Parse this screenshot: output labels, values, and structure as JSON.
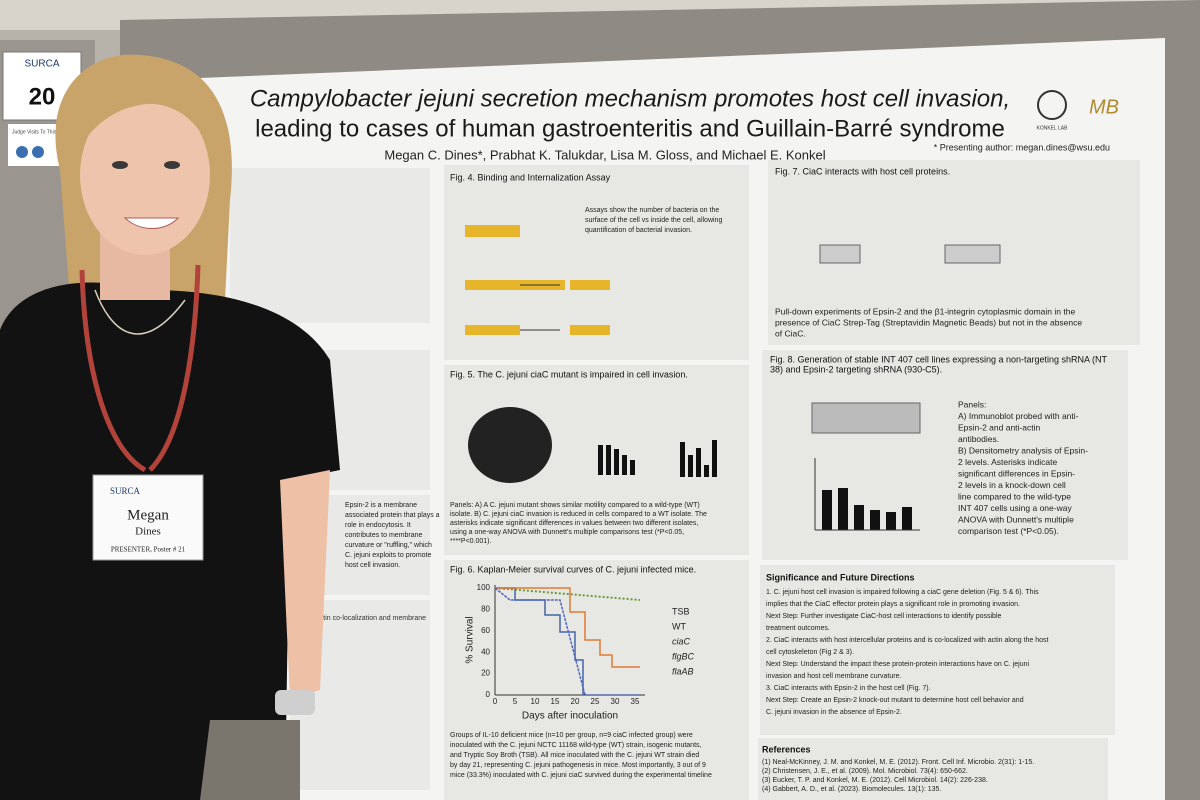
{
  "sign": {
    "logo": "SURCA",
    "number": "20",
    "note": "Judge Visits To This Poster"
  },
  "poster": {
    "title_line1": "Campylobacter jejuni secretion mechanism promotes host cell invasion,",
    "title_line2": "leading to cases of human gastroenteritis and Guillain-Barré syndrome",
    "authors": "Megan C. Dines*, Prabhat K. Talukdar, Lisa M. Gloss, and Michael E. Konkel",
    "presenting": "* Presenting author: megan.dines@wsu.edu",
    "lab": "KONKEL LAB",
    "logo": "MB",
    "fig4": {
      "heading": "Fig. 4. Binding and Internalization Assay",
      "text": [
        "Assays show the number of bacteria on the",
        "surface of the cell vs inside the cell, allowing",
        "quantification of bacterial invasion."
      ]
    },
    "fig5": {
      "heading": "Fig. 5. The C. jejuni ciaC mutant is impaired in cell invasion.",
      "caption": [
        "Panels: A) A C. jejuni mutant shows similar motility compared to a wild-type (WT)",
        "isolate. B) C. jejuni ciaC invasion is reduced in cells compared to a WT isolate. The",
        "asterisks indicate significant differences in values between two different isolates,",
        "using a one-way ANOVA with Dunnett's multiple comparisons test (*P<0.05,",
        "****P<0.001)."
      ]
    },
    "fig6": {
      "heading": "Fig. 6. Kaplan-Meier survival curves of C. jejuni infected mice.",
      "y_label": "% Survival",
      "x_label": "Days after inoculation",
      "x_ticks": [
        "0",
        "5",
        "10",
        "15",
        "20",
        "25",
        "30",
        "35"
      ],
      "y_ticks": [
        "0",
        "20",
        "40",
        "60",
        "80",
        "100"
      ],
      "legend": [
        "TSB",
        "WT",
        "ciaC",
        "flgBC",
        "flaAB"
      ],
      "caption": [
        "Groups of IL-10 deficient mice (n=10 per group, n=9 ciaC infected group) were",
        "inoculated with the C. jejuni NCTC 11168 wild-type (WT) strain, isogenic mutants,",
        "and Tryptic Soy Broth (TSB). All mice inoculated with the C. jejuni WT strain died",
        "by day 21, representing C. jejuni pathogenesis in mice. Most importantly, 3 out of 9",
        "mice (33.3%) inoculated with C. jejuni ciaC survived during the experimental timeline"
      ]
    },
    "fig7": {
      "heading": "Fig. 7. CiaC interacts with host cell proteins.",
      "caption": [
        "Pull-down experiments of Epsin-2 and the β1-integrin cytoplasmic domain in the",
        "presence of CiaC Strep-Tag (Streptavidin Magnetic Beads) but not in the absence",
        "of CiaC."
      ]
    },
    "fig8": {
      "heading": [
        "Fig. 8. Generation of stable INT 407 cell lines expressing a non-targeting shRNA (NT",
        "38) and Epsin-2 targeting shRNA (930-C5)."
      ],
      "panels": [
        "Panels:",
        "A)  Immunoblot probed with anti-",
        "     Epsin-2 and anti-actin",
        "     antibodies.",
        "B)  Densitometry analysis of Epsin-",
        "     2 levels. Asterisks indicate",
        "     significant differences in Epsin-",
        "     2 levels in a knock-down cell",
        "     line compared to the wild-type",
        "     INT 407 cells using a one-way",
        "     ANOVA with Dunnett's multiple",
        "     comparison test (*P<0.05)."
      ]
    },
    "significance": {
      "heading": "Significance and Future Directions",
      "lines": [
        "1. C. jejuni host cell invasion is impaired following a ciaC gene deletion (Fig. 5 & 6). This",
        "implies that the CiaC effector protein plays a significant role in promoting invasion.",
        "Next Step: Further investigate CiaC-host cell interactions to identify possible",
        "treatment outcomes.",
        "2. CiaC interacts with host intercellular proteins and is co-localized with actin along the host",
        "cell cytoskeleton (Fig 2 & 3).",
        "Next Step: Understand the impact these protein-protein interactions have on C. jejuni",
        "invasion and host cell membrane curvature.",
        "3. CiaC interacts with Epsin-2 in the host cell (Fig. 7).",
        "Next Step: Create an Epsin-2 knock-out mutant to determine host cell behavior and",
        "C. jejuni invasion in the absence of Epsin-2."
      ]
    },
    "references": {
      "heading": "References",
      "lines": [
        "(1) Neal-McKinney, J. M. and Konkel, M. E. (2012). Front. Cell Inf. Microbio. 2(31): 1-15.",
        "(2) Christensen, J. E., et al. (2009). Mol. Microbiol. 73(4): 650-662.",
        "(3) Eucker, T. P. and Konkel, M. E. (2012). Cell Microbiol. 14(2): 226-238.",
        "(4) Gabbert, A. D., et al. (2023). Biomolecules. 13(1): 135."
      ]
    },
    "left": {
      "epsin": [
        "Epsin-2 is a membrane",
        "associated protein that plays a",
        "role in endocytosis. It",
        "contributes to membrane",
        "curvature or \"ruffling,\" which",
        "C. jejuni exploits to promote",
        "host cell invasion."
      ],
      "coloc": "CiaC-actin co-localization and membrane"
    }
  },
  "badge": {
    "logo": "SURCA",
    "first": "Megan",
    "last": "Dines",
    "role": "PRESENTER, Poster # 21"
  }
}
